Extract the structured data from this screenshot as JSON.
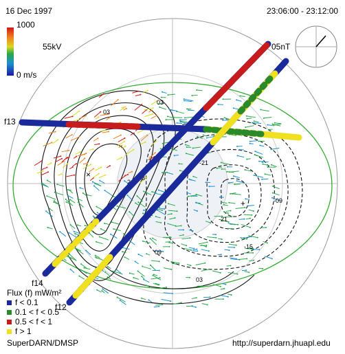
{
  "header": {
    "date": "16 Dec 1997",
    "time_range": "23:06:00 - 23:12:00"
  },
  "color_bar": {
    "max_label": "1000",
    "min_label": "0 m/s"
  },
  "potential": "55kV",
  "imf_scale": "05nT",
  "tracks": [
    {
      "label": "f13"
    },
    {
      "label": "f14"
    },
    {
      "label": "f12"
    }
  ],
  "contour_labels": [
    "03",
    "03",
    "-03",
    "-21",
    "-09",
    "-15",
    "-21",
    "21",
    "09",
    "03"
  ],
  "legend": {
    "title": "Flux (f) mW/m²",
    "entries": [
      "f < 0.1",
      "0.1 < f < 0.5",
      "0.5 < f < 1",
      "f > 1"
    ]
  },
  "footer": {
    "left": "SuperDARN/DMSP",
    "right": "http://superdarn.jhuapl.edu"
  }
}
